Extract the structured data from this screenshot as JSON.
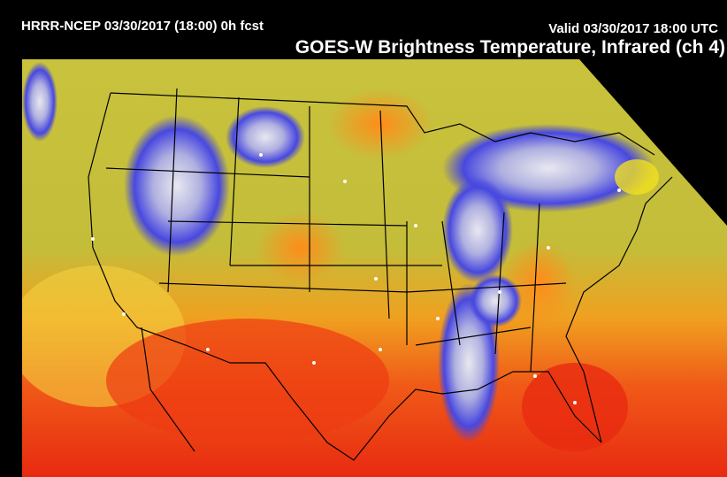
{
  "header": {
    "model": "HRRR-NCEP 03/30/2017 (18:00) 0h fcst",
    "valid": "Valid 03/30/2017 18:00 UTC",
    "title": "GOES-W Brightness Temperature, Infrared (ch 4)"
  }
}
